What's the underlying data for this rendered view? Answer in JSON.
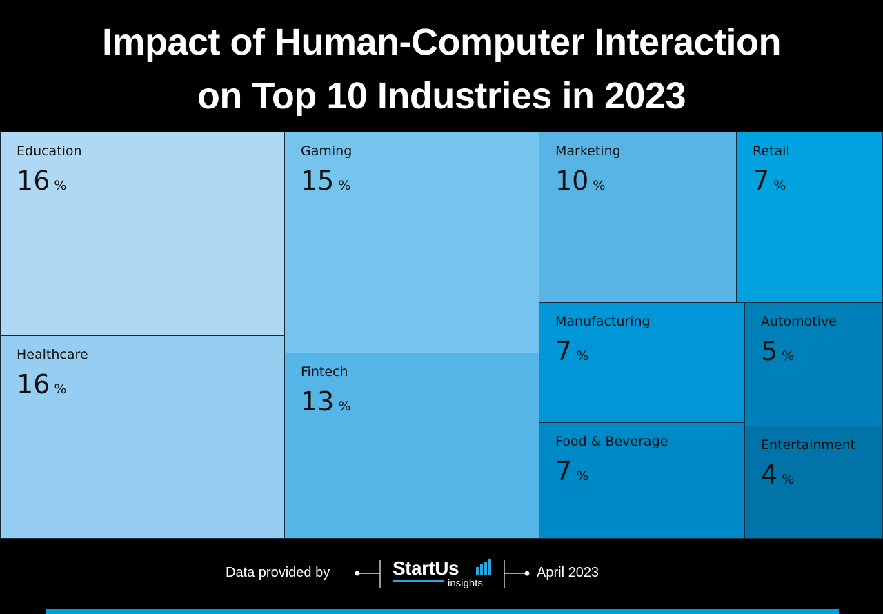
{
  "title": {
    "line1": "Impact of Human-Computer Interaction",
    "line2": "on Top 10 Industries in 2023"
  },
  "chart_data": {
    "type": "treemap",
    "unit": "%",
    "tiles": [
      {
        "label": "Education",
        "value": 16,
        "color": "#aed8f4"
      },
      {
        "label": "Healthcare",
        "value": 16,
        "color": "#96cef2"
      },
      {
        "label": "Gaming",
        "value": 15,
        "color": "#74c4ee"
      },
      {
        "label": "Fintech",
        "value": 13,
        "color": "#55b5e6"
      },
      {
        "label": "Marketing",
        "value": 10,
        "color": "#57b4e5"
      },
      {
        "label": "Retail",
        "value": 7,
        "color": "#00a2df"
      },
      {
        "label": "Manufacturing",
        "value": 7,
        "color": "#0096d8"
      },
      {
        "label": "Automotive",
        "value": 5,
        "color": "#0080b9"
      },
      {
        "label": "Food & Beverage",
        "value": 7,
        "color": "#0089c7"
      },
      {
        "label": "Entertainment",
        "value": 4,
        "color": "#0073a8"
      }
    ]
  },
  "footer": {
    "data_provided_by": "Data provided by",
    "logo_name": "StartUs",
    "logo_sub": "insights",
    "date": "April 2023"
  },
  "colors": {
    "background": "#000000",
    "accent": "#009ee0",
    "tile_border": "#1a2a38"
  }
}
